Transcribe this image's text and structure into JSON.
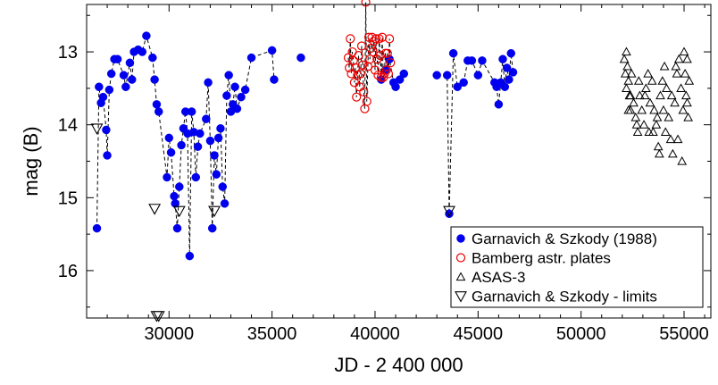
{
  "chart_data": {
    "type": "scatter",
    "title": "",
    "xlabel": "JD - 2 400 000",
    "ylabel": "mag (B)",
    "xlim": [
      26000,
      56300
    ],
    "ylim": [
      16.65,
      12.35
    ],
    "y_inverted": true,
    "grid": false,
    "legend_position": "bottom-right",
    "x_ticks": [
      30000,
      35000,
      40000,
      45000,
      50000,
      55000
    ],
    "x_tick_labels": [
      "30000",
      "35000",
      "40000",
      "45000",
      "50000",
      "55000"
    ],
    "y_ticks": [
      13,
      14,
      15,
      16
    ],
    "y_tick_labels": [
      "13",
      "14",
      "15",
      "16"
    ],
    "series": [
      {
        "name": "Garnavich & Szkody (1988)",
        "marker": "filled-circle",
        "color": "#0000ee",
        "connected_dashed": true,
        "points": [
          [
            26500,
            15.42
          ],
          [
            26600,
            13.48
          ],
          [
            26700,
            13.7
          ],
          [
            26800,
            13.62
          ],
          [
            26950,
            14.07
          ],
          [
            27000,
            14.42
          ],
          [
            27100,
            13.52
          ],
          [
            27200,
            13.3
          ],
          [
            27350,
            13.1
          ],
          [
            27500,
            13.1
          ],
          [
            27800,
            13.32
          ],
          [
            27900,
            13.48
          ],
          [
            28100,
            13.15
          ],
          [
            28200,
            13.38
          ],
          [
            28300,
            13.0
          ],
          [
            28500,
            12.97
          ],
          [
            28700,
            13.0
          ],
          [
            28900,
            12.78
          ],
          [
            29200,
            13.08
          ],
          [
            29300,
            13.38
          ],
          [
            29400,
            13.72
          ],
          [
            29500,
            13.82
          ],
          [
            29900,
            14.72
          ],
          [
            30000,
            14.18
          ],
          [
            30100,
            14.38
          ],
          [
            30250,
            14.98
          ],
          [
            30300,
            15.08
          ],
          [
            30400,
            15.42
          ],
          [
            30500,
            14.85
          ],
          [
            30600,
            14.28
          ],
          [
            30700,
            14.05
          ],
          [
            30800,
            13.82
          ],
          [
            30900,
            14.12
          ],
          [
            31000,
            15.8
          ],
          [
            31100,
            13.82
          ],
          [
            31200,
            14.1
          ],
          [
            31300,
            14.72
          ],
          [
            31400,
            14.3
          ],
          [
            31500,
            14.12
          ],
          [
            31800,
            13.92
          ],
          [
            31900,
            13.42
          ],
          [
            32000,
            14.22
          ],
          [
            32100,
            15.42
          ],
          [
            32200,
            14.42
          ],
          [
            32300,
            14.68
          ],
          [
            32400,
            14.18
          ],
          [
            32500,
            14.05
          ],
          [
            32600,
            14.85
          ],
          [
            32700,
            15.08
          ],
          [
            32800,
            13.6
          ],
          [
            32900,
            13.32
          ],
          [
            33000,
            13.82
          ],
          [
            33100,
            13.72
          ],
          [
            33200,
            13.48
          ],
          [
            33300,
            13.78
          ],
          [
            33500,
            13.62
          ],
          [
            33700,
            13.52
          ],
          [
            34000,
            13.08
          ],
          [
            35000,
            12.98
          ],
          [
            35100,
            13.38
          ],
          [
            36400,
            13.08
          ],
          [
            40300,
            13.38
          ],
          [
            40500,
            13.25
          ],
          [
            40700,
            13.1
          ],
          [
            40900,
            13.42
          ],
          [
            41000,
            13.48
          ],
          [
            41200,
            13.38
          ],
          [
            41400,
            13.3
          ],
          [
            43000,
            13.32
          ],
          [
            43500,
            13.32
          ],
          [
            43600,
            15.22
          ],
          [
            43800,
            13.02
          ],
          [
            44000,
            13.48
          ],
          [
            44300,
            13.42
          ],
          [
            44500,
            13.12
          ],
          [
            44700,
            13.12
          ],
          [
            45000,
            13.32
          ],
          [
            45200,
            13.12
          ],
          [
            45800,
            13.42
          ],
          [
            45900,
            13.48
          ],
          [
            46000,
            13.72
          ],
          [
            46100,
            13.42
          ],
          [
            46200,
            13.1
          ],
          [
            46300,
            13.48
          ],
          [
            46400,
            13.22
          ],
          [
            46500,
            13.38
          ],
          [
            46600,
            13.02
          ],
          [
            46700,
            13.28
          ]
        ]
      },
      {
        "name": "Bamberg astr. plates",
        "marker": "open-circle",
        "color": "#ee0000",
        "connected_dashed": true,
        "points": [
          [
            38700,
            13.08
          ],
          [
            38750,
            13.22
          ],
          [
            38800,
            12.82
          ],
          [
            38850,
            13.3
          ],
          [
            38900,
            13.0
          ],
          [
            38950,
            13.12
          ],
          [
            39000,
            13.42
          ],
          [
            39050,
            13.22
          ],
          [
            39100,
            13.62
          ],
          [
            39150,
            13.32
          ],
          [
            39200,
            13.05
          ],
          [
            39250,
            13.48
          ],
          [
            39300,
            13.3
          ],
          [
            39350,
            12.92
          ],
          [
            39400,
            13.18
          ],
          [
            39450,
            13.55
          ],
          [
            39500,
            13.78
          ],
          [
            39550,
            12.32
          ],
          [
            39600,
            13.68
          ],
          [
            39650,
            13.2
          ],
          [
            39700,
            12.8
          ],
          [
            39750,
            13.1
          ],
          [
            39800,
            12.95
          ],
          [
            39850,
            12.8
          ],
          [
            39900,
            13.0
          ],
          [
            39950,
            12.85
          ],
          [
            40000,
            13.25
          ],
          [
            40050,
            12.82
          ],
          [
            40100,
            13.1
          ],
          [
            40150,
            13.32
          ],
          [
            40200,
            12.82
          ],
          [
            40250,
            13.05
          ],
          [
            40300,
            13.35
          ],
          [
            40350,
            12.8
          ],
          [
            40400,
            13.35
          ],
          [
            40450,
            13.3
          ],
          [
            40500,
            13.02
          ],
          [
            40550,
            13.25
          ],
          [
            40600,
            13.02
          ],
          [
            40650,
            13.3
          ],
          [
            40700,
            12.82
          ],
          [
            40750,
            13.15
          ]
        ]
      },
      {
        "name": "ASAS-3",
        "marker": "open-triangle-up",
        "color": "#000000",
        "connected_dashed": false,
        "points": [
          [
            52100,
            13.1
          ],
          [
            52150,
            13.3
          ],
          [
            52200,
            13.5
          ],
          [
            52250,
            13.2
          ],
          [
            52300,
            13.4
          ],
          [
            52350,
            13.6
          ],
          [
            52400,
            13.8
          ],
          [
            52450,
            13.3
          ],
          [
            52550,
            13.7
          ],
          [
            52650,
            13.9
          ],
          [
            52750,
            14.1
          ],
          [
            52850,
            13.6
          ],
          [
            52950,
            13.8
          ],
          [
            53050,
            14.0
          ],
          [
            53150,
            13.5
          ],
          [
            53250,
            13.3
          ],
          [
            53350,
            13.7
          ],
          [
            53450,
            13.4
          ],
          [
            53550,
            13.8
          ],
          [
            53650,
            14.0
          ],
          [
            53750,
            14.3
          ],
          [
            53850,
            13.6
          ],
          [
            53950,
            13.4
          ],
          [
            54050,
            13.2
          ],
          [
            54150,
            13.5
          ],
          [
            54250,
            13.9
          ],
          [
            54350,
            14.2
          ],
          [
            54450,
            14.4
          ],
          [
            54550,
            13.7
          ],
          [
            54650,
            13.3
          ],
          [
            54750,
            13.1
          ],
          [
            54850,
            13.5
          ],
          [
            54950,
            13.8
          ],
          [
            55050,
            13.3
          ],
          [
            55150,
            13.1
          ],
          [
            55250,
            13.4
          ],
          [
            52200,
            13.0
          ],
          [
            52300,
            13.8
          ],
          [
            52700,
            14.0
          ],
          [
            53100,
            13.6
          ],
          [
            53500,
            14.1
          ],
          [
            53800,
            14.4
          ],
          [
            54000,
            13.8
          ],
          [
            54400,
            13.6
          ],
          [
            54700,
            14.2
          ],
          [
            54900,
            14.5
          ],
          [
            55100,
            13.6
          ],
          [
            55200,
            13.9
          ],
          [
            52400,
            13.6
          ],
          [
            52800,
            13.4
          ],
          [
            53300,
            14.1
          ],
          [
            53700,
            13.9
          ],
          [
            54100,
            14.1
          ],
          [
            54600,
            13.2
          ],
          [
            55000,
            13.0
          ],
          [
            55150,
            13.7
          ]
        ]
      },
      {
        "name": "Garnavich & Szkody - limits",
        "marker": "open-triangle-down",
        "color": "#000000",
        "connected_dashed": false,
        "points": [
          [
            26500,
            14.05
          ],
          [
            29300,
            15.15
          ],
          [
            29400,
            16.62
          ],
          [
            29500,
            16.62
          ],
          [
            30500,
            15.18
          ],
          [
            32200,
            15.18
          ],
          [
            43600,
            15.18
          ]
        ]
      }
    ]
  }
}
